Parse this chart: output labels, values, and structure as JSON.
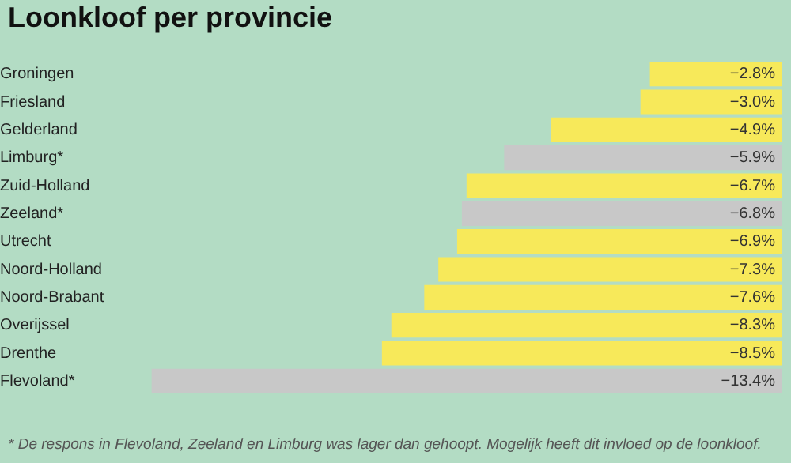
{
  "chart_data": {
    "type": "bar",
    "orientation": "horizontal",
    "title": "Loonkloof per provincie",
    "categories": [
      "Groningen",
      "Friesland",
      "Gelderland",
      "Limburg*",
      "Zuid-Holland",
      "Zeeland*",
      "Utrecht",
      "Noord-Holland",
      "Noord-Brabant",
      "Overijssel",
      "Drenthe",
      "Flevoland*"
    ],
    "values": [
      -2.8,
      -3.0,
      -4.9,
      -5.9,
      -6.7,
      -6.8,
      -6.9,
      -7.3,
      -7.6,
      -8.3,
      -8.5,
      -13.4
    ],
    "colors": [
      "#f7e95a",
      "#f7e95a",
      "#f7e95a",
      "#c8c8c8",
      "#f7e95a",
      "#c8c8c8",
      "#f7e95a",
      "#f7e95a",
      "#f7e95a",
      "#f7e95a",
      "#f7e95a",
      "#c8c8c8"
    ],
    "value_labels": [
      "−2.8%",
      "−3.0%",
      "−4.9%",
      "−5.9%",
      "−6.7%",
      "−6.8%",
      "−6.9%",
      "−7.3%",
      "−7.6%",
      "−8.3%",
      "−8.5%",
      "−13.4%"
    ],
    "annotations": [
      "* De respons in Flevoland, Zeeland en Limburg was lager dan gehoopt. Mogelijk heeft dit invloed op de loonkloof."
    ],
    "grid": false,
    "legend": false
  }
}
